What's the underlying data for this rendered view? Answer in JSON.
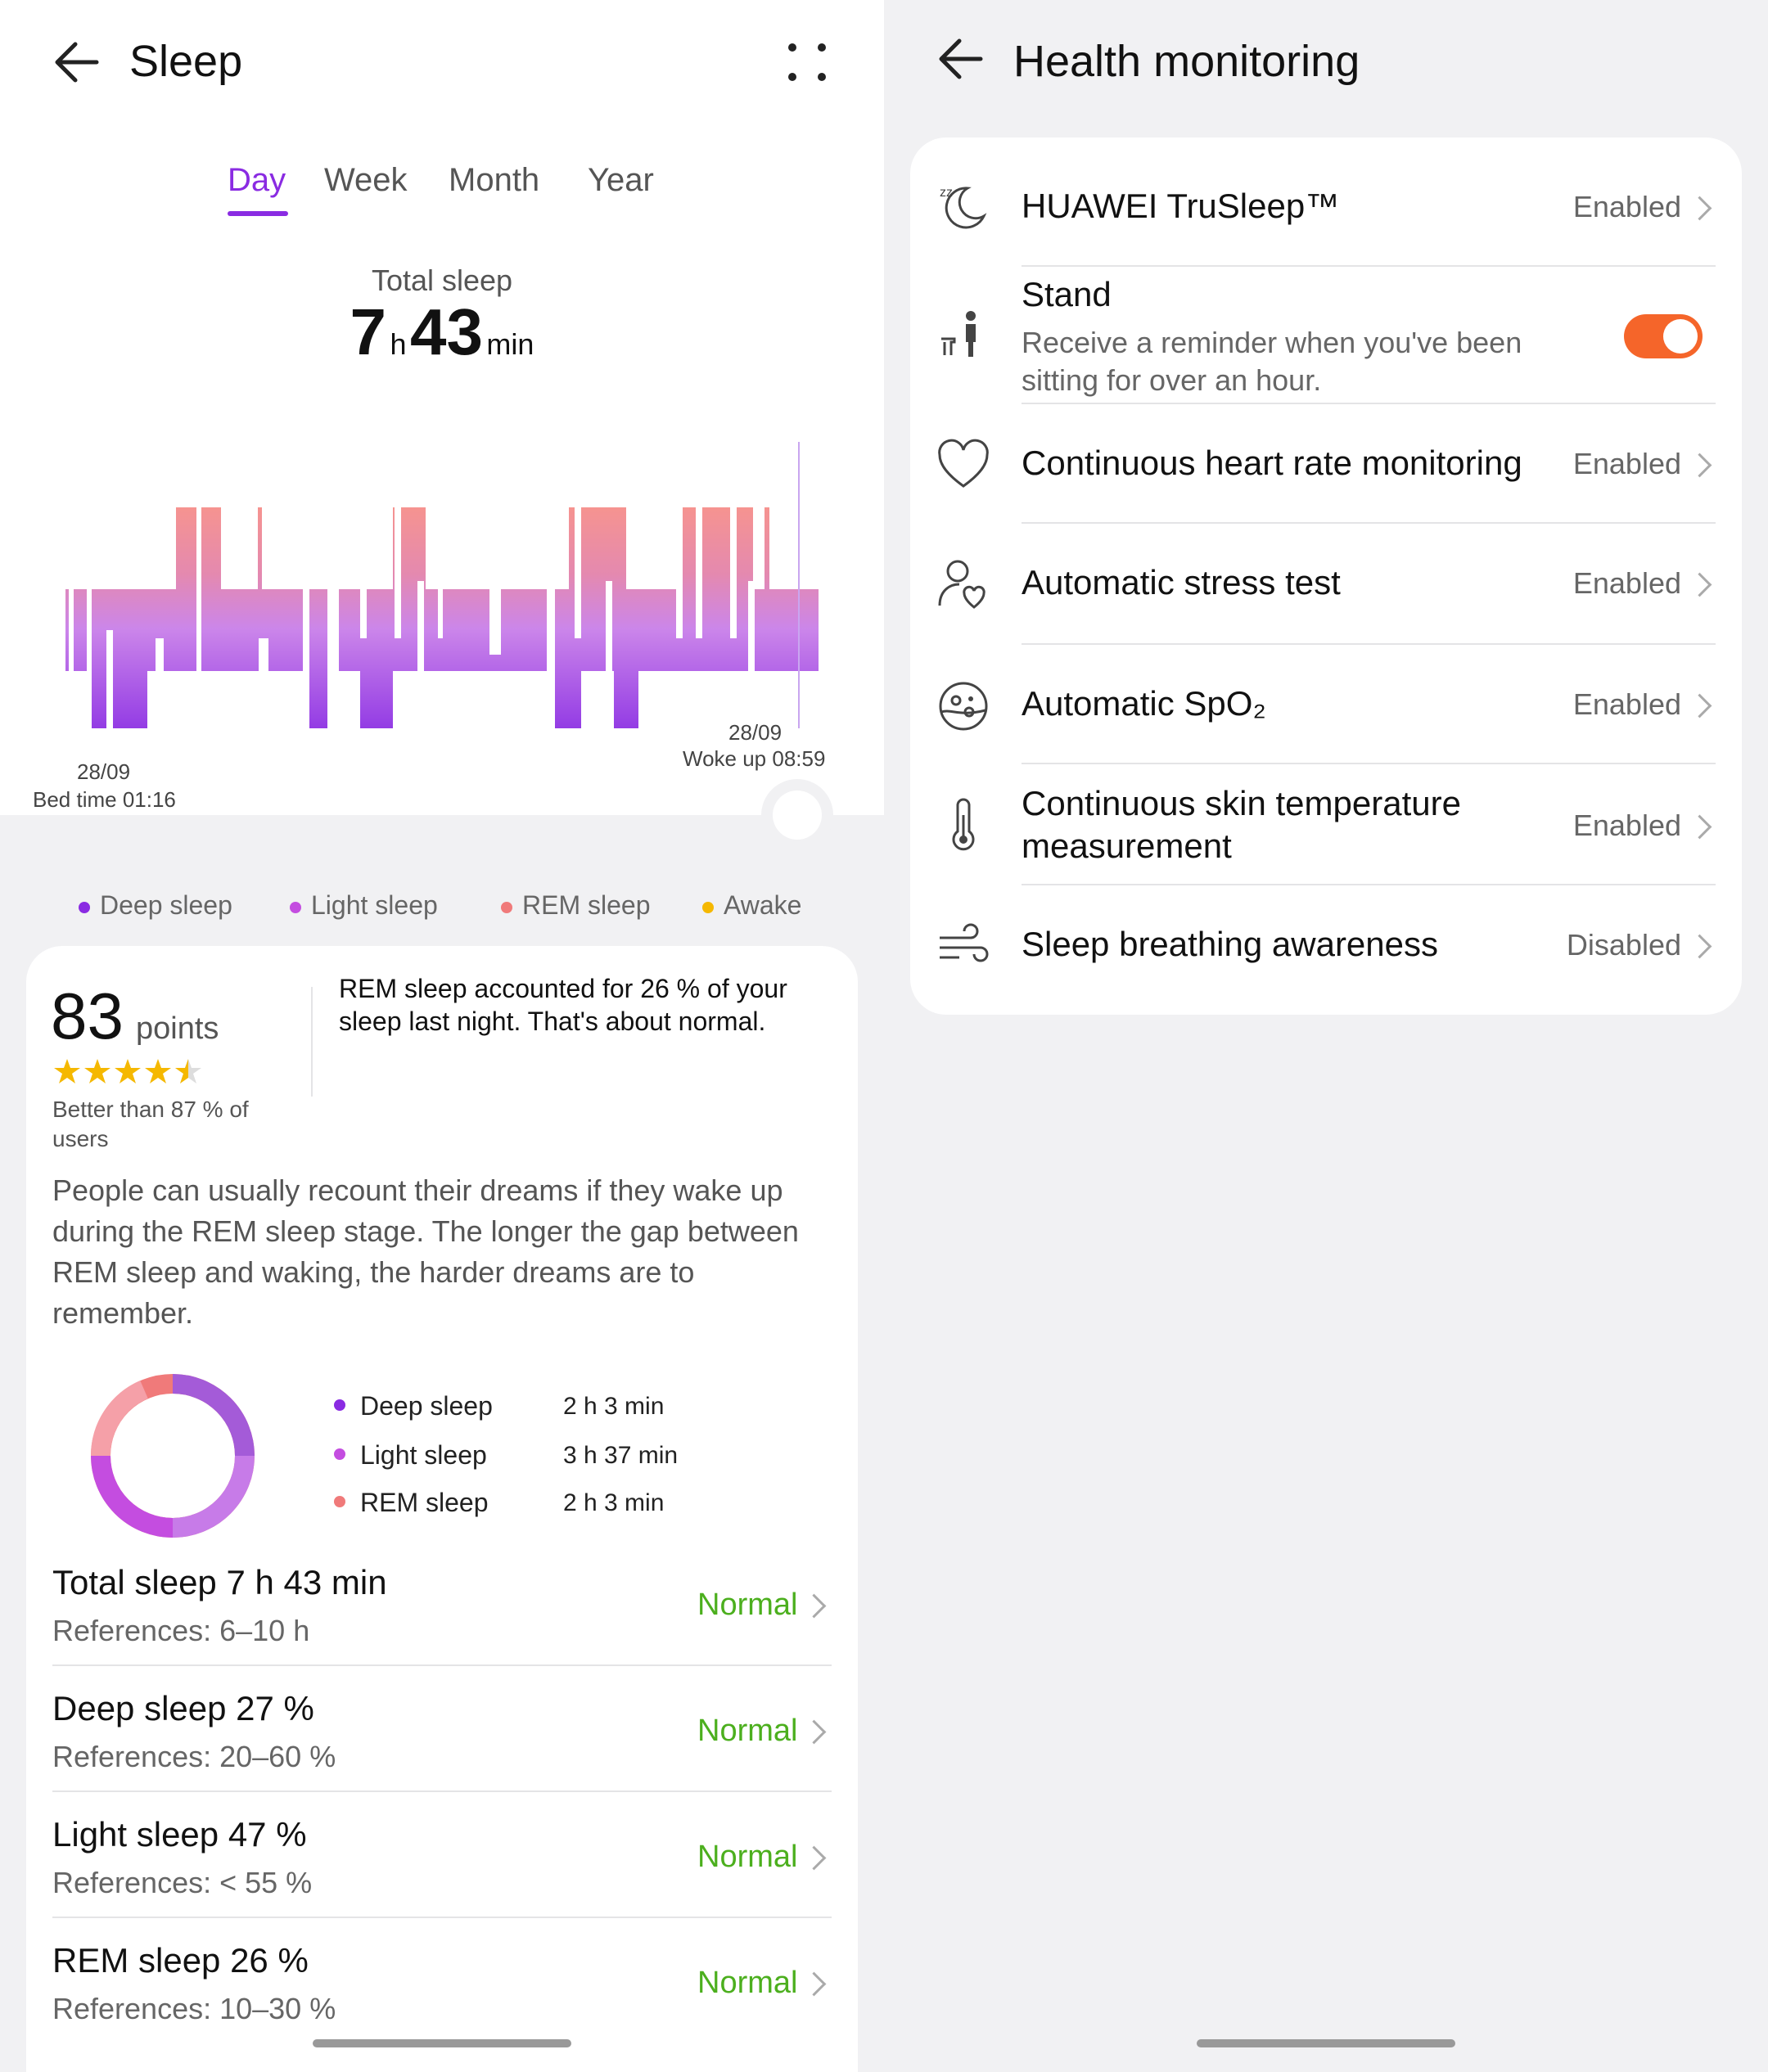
{
  "sleep": {
    "title": "Sleep",
    "tabs": [
      "Day",
      "Week",
      "Month",
      "Year"
    ],
    "total_label": "Total sleep",
    "total_hours": "7",
    "hours_unit": "h",
    "total_minutes": "43",
    "minutes_unit": "min",
    "bed_date": "28/09",
    "bed_time": "Bed time 01:16",
    "wake_date": "28/09",
    "wake_time": "Woke up 08:59",
    "legend": [
      {
        "label": "Deep sleep",
        "color": "#8a2be2"
      },
      {
        "label": "Light sleep",
        "color": "#c44de0"
      },
      {
        "label": "REM sleep",
        "color": "#f07a7a"
      },
      {
        "label": "Awake",
        "color": "#f5b800"
      }
    ],
    "score": "83",
    "score_unit": "points",
    "stars": 4.5,
    "better_than": "Better than 87 % of users",
    "insight": "REM sleep accounted for 26 % of your sleep last night. That's about normal.",
    "tip": "People can usually recount their dreams if they wake up during the REM sleep stage. The longer the gap between REM sleep and waking, the harder dreams are to remember.",
    "breakdown": [
      {
        "label": "Deep sleep",
        "value": "2 h 3 min",
        "color": "#8a2be2"
      },
      {
        "label": "Light sleep",
        "value": "3 h 37 min",
        "color": "#c44de0"
      },
      {
        "label": "REM sleep",
        "value": "2 h 3 min",
        "color": "#f07a7a"
      }
    ],
    "metrics": [
      {
        "title": "Total sleep  7 h 43 min",
        "ref": "References: 6–10 h",
        "status": "Normal"
      },
      {
        "title": "Deep sleep  27 %",
        "ref": "References: 20–60 %",
        "status": "Normal"
      },
      {
        "title": "Light sleep  47 %",
        "ref": "References: < 55 %",
        "status": "Normal"
      },
      {
        "title": "REM sleep  26 %",
        "ref": "References: 10–30 %",
        "status": "Normal"
      }
    ]
  },
  "health": {
    "title": "Health monitoring",
    "items": [
      {
        "label": "HUAWEI TruSleep™",
        "status": "Enabled",
        "icon": "moon-sleep-icon"
      },
      {
        "label": "Stand",
        "sub": "Receive a reminder when you've been sitting for over an hour.",
        "toggle": true,
        "icon": "standing-person-icon"
      },
      {
        "label": "Continuous heart rate monitoring",
        "status": "Enabled",
        "icon": "heart-icon"
      },
      {
        "label": "Automatic stress test",
        "status": "Enabled",
        "icon": "person-heart-icon"
      },
      {
        "label": "Automatic SpO₂",
        "status": "Enabled",
        "icon": "blood-oxygen-icon"
      },
      {
        "label": "Continuous skin temperature measurement",
        "status": "Enabled",
        "icon": "thermometer-icon"
      },
      {
        "label": "Sleep breathing awareness",
        "status": "Disabled",
        "icon": "wind-icon"
      }
    ]
  }
}
